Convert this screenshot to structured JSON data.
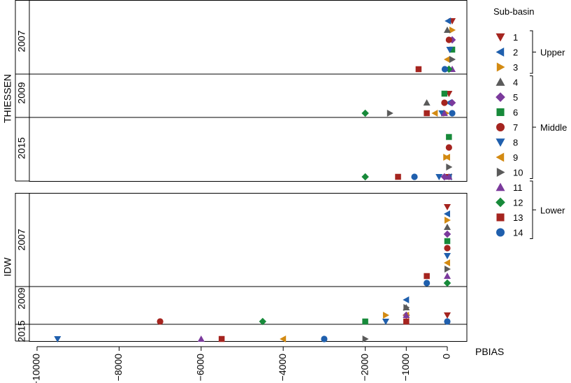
{
  "chart_data": {
    "type": "scatter",
    "xlabel": "PBIAS",
    "xlim": [
      -10200,
      200
    ],
    "xticks": [
      -10000,
      -8000,
      -6000,
      -4000,
      -2000,
      -1000,
      0
    ],
    "xtick_labels": [
      "−10000",
      "−8000",
      "−6000",
      "−4000",
      "−2000",
      "−1000",
      "0"
    ],
    "legend": {
      "title": "Sub-basin",
      "groups": [
        {
          "label": "Upper",
          "members": [
            1,
            2,
            3
          ]
        },
        {
          "label": "Middle",
          "members": [
            4,
            5,
            6,
            7,
            8,
            9,
            10
          ]
        },
        {
          "label": "Lower",
          "members": [
            11,
            12,
            13,
            14
          ]
        }
      ]
    },
    "series": [
      {
        "name": "1",
        "color": "#a5241f",
        "marker": "triangle-down"
      },
      {
        "name": "2",
        "color": "#1f5fad",
        "marker": "triangle-left"
      },
      {
        "name": "3",
        "color": "#d38a12",
        "marker": "triangle-right"
      },
      {
        "name": "4",
        "color": "#5a5a5a",
        "marker": "triangle-up"
      },
      {
        "name": "5",
        "color": "#7b3a9c",
        "marker": "diamond"
      },
      {
        "name": "6",
        "color": "#178a3a",
        "marker": "square"
      },
      {
        "name": "7",
        "color": "#a5241f",
        "marker": "circle"
      },
      {
        "name": "8",
        "color": "#1f5fad",
        "marker": "triangle-down"
      },
      {
        "name": "9",
        "color": "#d38a12",
        "marker": "triangle-left"
      },
      {
        "name": "10",
        "color": "#5a5a5a",
        "marker": "triangle-right"
      },
      {
        "name": "11",
        "color": "#7b3a9c",
        "marker": "triangle-up"
      },
      {
        "name": "12",
        "color": "#178a3a",
        "marker": "diamond"
      },
      {
        "name": "13",
        "color": "#a5241f",
        "marker": "square"
      },
      {
        "name": "14",
        "color": "#1f5fad",
        "marker": "circle"
      }
    ],
    "panels": [
      {
        "method": "THIESSEN",
        "years": [
          {
            "year": "2007",
            "points": [
              {
                "s": 1,
                "x": 120
              },
              {
                "s": 2,
                "x": 20
              },
              {
                "s": 3,
                "x": 120
              },
              {
                "s": 4,
                "x": 0
              },
              {
                "s": 5,
                "x": 120
              },
              {
                "s": 6,
                "x": 120
              },
              {
                "s": 7,
                "x": 40
              },
              {
                "s": 8,
                "x": 60
              },
              {
                "s": 9,
                "x": 0
              },
              {
                "s": 10,
                "x": 120
              },
              {
                "s": 11,
                "x": 120
              },
              {
                "s": 12,
                "x": 40
              },
              {
                "s": 13,
                "x": -700
              },
              {
                "s": 14,
                "x": -60
              }
            ]
          },
          {
            "year": "2009",
            "points": [
              {
                "s": 1,
                "x": 40
              },
              {
                "s": 2,
                "x": 40
              },
              {
                "s": 3,
                "x": -30
              },
              {
                "s": 4,
                "x": -500
              },
              {
                "s": 5,
                "x": 120
              },
              {
                "s": 6,
                "x": -70
              },
              {
                "s": 7,
                "x": -70
              },
              {
                "s": 8,
                "x": -130
              },
              {
                "s": 9,
                "x": -300
              },
              {
                "s": 10,
                "x": -1400
              },
              {
                "s": 11,
                "x": -70
              },
              {
                "s": 12,
                "x": -2000
              },
              {
                "s": 13,
                "x": -500
              },
              {
                "s": 14,
                "x": 120
              }
            ]
          },
          {
            "year": "2015",
            "points": [
              {
                "s": 1,
                "x": 40
              },
              {
                "s": 2,
                "x": 40
              },
              {
                "s": 3,
                "x": -30
              },
              {
                "s": 4,
                "x": 40
              },
              {
                "s": 5,
                "x": -70
              },
              {
                "s": 6,
                "x": 40
              },
              {
                "s": 7,
                "x": 40
              },
              {
                "s": 8,
                "x": -200
              },
              {
                "s": 9,
                "x": 0
              },
              {
                "s": 10,
                "x": 40
              },
              {
                "s": 11,
                "x": 40
              },
              {
                "s": 12,
                "x": -2000
              },
              {
                "s": 13,
                "x": -1200
              },
              {
                "s": 14,
                "x": -800
              }
            ]
          }
        ]
      },
      {
        "method": "IDW",
        "years": [
          {
            "year": "2007",
            "points": [
              {
                "s": 1,
                "x": 0
              },
              {
                "s": 2,
                "x": 0
              },
              {
                "s": 3,
                "x": 0
              },
              {
                "s": 4,
                "x": 0
              },
              {
                "s": 5,
                "x": 0
              },
              {
                "s": 6,
                "x": 0
              },
              {
                "s": 7,
                "x": 0
              },
              {
                "s": 8,
                "x": 0
              },
              {
                "s": 9,
                "x": 0
              },
              {
                "s": 10,
                "x": 0
              },
              {
                "s": 11,
                "x": 0
              },
              {
                "s": 12,
                "x": 0
              },
              {
                "s": 13,
                "x": -500
              },
              {
                "s": 14,
                "x": -500
              }
            ]
          },
          {
            "year": "2009",
            "points": [
              {
                "s": 1,
                "x": 0
              },
              {
                "s": 2,
                "x": -1000
              },
              {
                "s": 3,
                "x": -1500
              },
              {
                "s": 4,
                "x": -1000
              },
              {
                "s": 5,
                "x": -1000
              },
              {
                "s": 6,
                "x": -2000
              },
              {
                "s": 7,
                "x": -7000
              },
              {
                "s": 8,
                "x": -1500
              },
              {
                "s": 9,
                "x": -1000
              },
              {
                "s": 10,
                "x": -1000
              },
              {
                "s": 11,
                "x": -1000
              },
              {
                "s": 12,
                "x": -4500
              },
              {
                "s": 13,
                "x": -1000
              },
              {
                "s": 14,
                "x": 0
              }
            ]
          },
          {
            "year": "2015",
            "points": [
              {
                "s": 8,
                "x": -9500
              },
              {
                "s": 11,
                "x": -6000
              },
              {
                "s": 13,
                "x": -5500
              },
              {
                "s": 9,
                "x": -4000
              },
              {
                "s": 14,
                "x": -3000
              },
              {
                "s": 10,
                "x": -2000
              }
            ]
          }
        ]
      }
    ]
  }
}
